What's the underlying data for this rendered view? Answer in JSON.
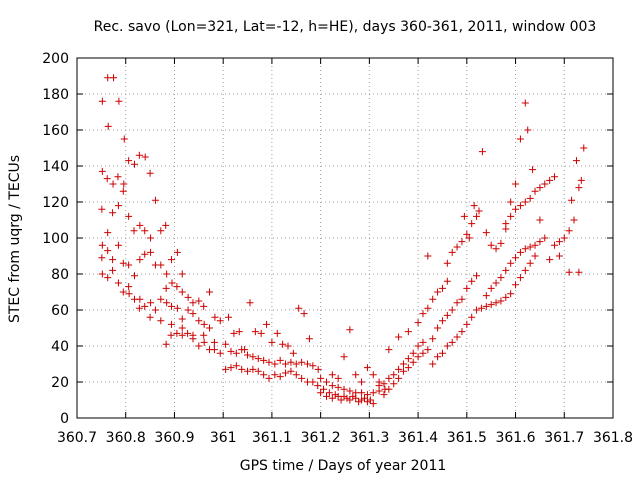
{
  "chart_data": {
    "type": "scatter",
    "title": "Rec. savo (Lon=321, Lat=-12, h=HE), days 360-361, 2011, window 003",
    "xlabel": "GPS time / Days of year 2011",
    "ylabel": "STEC from uqrg / TECUs",
    "xlim": [
      360.7,
      361.8
    ],
    "ylim": [
      0,
      200
    ],
    "xticks": [
      "360.7",
      "360.8",
      "360.9",
      "361",
      "361.1",
      "361.2",
      "361.3",
      "361.4",
      "361.5",
      "361.6",
      "361.7",
      "361.8"
    ],
    "yticks": [
      "0",
      "20",
      "40",
      "60",
      "80",
      "100",
      "120",
      "140",
      "160",
      "180",
      "200"
    ],
    "grid": true,
    "marker": "plus",
    "color": "#cc0000",
    "points": [
      [
        360.752,
        176
      ],
      [
        360.763,
        189
      ],
      [
        360.775,
        189
      ],
      [
        360.786,
        176
      ],
      [
        360.797,
        155
      ],
      [
        360.764,
        162
      ],
      [
        360.752,
        137
      ],
      [
        360.762,
        133
      ],
      [
        360.774,
        130
      ],
      [
        360.784,
        134
      ],
      [
        360.796,
        130
      ],
      [
        360.806,
        143
      ],
      [
        360.818,
        141
      ],
      [
        360.828,
        146
      ],
      [
        360.84,
        145
      ],
      [
        360.85,
        136
      ],
      [
        360.751,
        116
      ],
      [
        360.763,
        103
      ],
      [
        360.773,
        114
      ],
      [
        360.785,
        118
      ],
      [
        360.795,
        126
      ],
      [
        360.806,
        112
      ],
      [
        360.817,
        104
      ],
      [
        360.829,
        107
      ],
      [
        360.839,
        104
      ],
      [
        360.851,
        100
      ],
      [
        360.861,
        121
      ],
      [
        360.872,
        104
      ],
      [
        360.882,
        107
      ],
      [
        360.752,
        96
      ],
      [
        360.763,
        93
      ],
      [
        360.773,
        88
      ],
      [
        360.785,
        96
      ],
      [
        360.795,
        86
      ],
      [
        360.806,
        85
      ],
      [
        360.818,
        79
      ],
      [
        360.829,
        88
      ],
      [
        360.839,
        91
      ],
      [
        360.851,
        92
      ],
      [
        360.861,
        85
      ],
      [
        360.872,
        85
      ],
      [
        360.884,
        80
      ],
      [
        360.894,
        88
      ],
      [
        360.906,
        92
      ],
      [
        360.916,
        80
      ],
      [
        360.751,
        89
      ],
      [
        360.763,
        78
      ],
      [
        360.773,
        82
      ],
      [
        360.785,
        75
      ],
      [
        360.795,
        70
      ],
      [
        360.806,
        73
      ],
      [
        360.818,
        66
      ],
      [
        360.829,
        66
      ],
      [
        360.839,
        62
      ],
      [
        360.851,
        64
      ],
      [
        360.861,
        60
      ],
      [
        360.872,
        66
      ],
      [
        360.884,
        64
      ],
      [
        360.894,
        62
      ],
      [
        360.906,
        61
      ],
      [
        360.916,
        55
      ],
      [
        360.928,
        60
      ],
      [
        360.938,
        58
      ],
      [
        360.95,
        54
      ],
      [
        360.961,
        52
      ],
      [
        360.972,
        50
      ],
      [
        360.752,
        80
      ],
      [
        360.807,
        69
      ],
      [
        360.828,
        61
      ],
      [
        360.85,
        56
      ],
      [
        360.872,
        54
      ],
      [
        360.894,
        52
      ],
      [
        360.916,
        50
      ],
      [
        360.938,
        46
      ],
      [
        360.96,
        46
      ],
      [
        360.982,
        42
      ],
      [
        360.883,
        41
      ],
      [
        360.893,
        46
      ],
      [
        360.905,
        47
      ],
      [
        360.916,
        46
      ],
      [
        360.927,
        47
      ],
      [
        360.938,
        44
      ],
      [
        360.95,
        40
      ],
      [
        360.961,
        42
      ],
      [
        360.972,
        38
      ],
      [
        360.982,
        38
      ],
      [
        360.994,
        36
      ],
      [
        360.883,
        72
      ],
      [
        360.895,
        75
      ],
      [
        360.905,
        73
      ],
      [
        360.916,
        70
      ],
      [
        360.928,
        67
      ],
      [
        360.938,
        64
      ],
      [
        360.95,
        65
      ],
      [
        360.96,
        62
      ],
      [
        360.972,
        70
      ],
      [
        360.983,
        56
      ],
      [
        360.994,
        54
      ],
      [
        361.005,
        41
      ],
      [
        361.016,
        37
      ],
      [
        361.027,
        36
      ],
      [
        361.038,
        38
      ],
      [
        361.05,
        35
      ],
      [
        361.061,
        34
      ],
      [
        361.072,
        33
      ],
      [
        361.083,
        32
      ],
      [
        361.094,
        31
      ],
      [
        361.106,
        30
      ],
      [
        361.117,
        32
      ],
      [
        361.128,
        30
      ],
      [
        361.139,
        31
      ],
      [
        361.15,
        30
      ],
      [
        361.161,
        31
      ],
      [
        361.173,
        30
      ],
      [
        361.184,
        29
      ],
      [
        361.195,
        27
      ],
      [
        361.005,
        27
      ],
      [
        361.016,
        28
      ],
      [
        361.027,
        29
      ],
      [
        361.038,
        27
      ],
      [
        361.05,
        26
      ],
      [
        361.061,
        27
      ],
      [
        361.072,
        26
      ],
      [
        361.083,
        24
      ],
      [
        361.094,
        22
      ],
      [
        361.106,
        24
      ],
      [
        361.117,
        23
      ],
      [
        361.128,
        25
      ],
      [
        361.139,
        26
      ],
      [
        361.15,
        24
      ],
      [
        361.161,
        22
      ],
      [
        361.173,
        20
      ],
      [
        361.184,
        20
      ],
      [
        361.011,
        56
      ],
      [
        361.022,
        47
      ],
      [
        361.033,
        48
      ],
      [
        361.044,
        38
      ],
      [
        361.055,
        64
      ],
      [
        361.066,
        48
      ],
      [
        361.078,
        47
      ],
      [
        361.089,
        52
      ],
      [
        361.1,
        42
      ],
      [
        361.111,
        47
      ],
      [
        361.122,
        41
      ],
      [
        361.133,
        40
      ],
      [
        361.144,
        36
      ],
      [
        361.155,
        61
      ],
      [
        361.166,
        58
      ],
      [
        361.177,
        44
      ],
      [
        361.194,
        18
      ],
      [
        361.2,
        14
      ],
      [
        361.206,
        16
      ],
      [
        361.212,
        12
      ],
      [
        361.218,
        14
      ],
      [
        361.224,
        11
      ],
      [
        361.23,
        13
      ],
      [
        361.236,
        12
      ],
      [
        361.242,
        10
      ],
      [
        361.248,
        12
      ],
      [
        361.254,
        11
      ],
      [
        361.26,
        10
      ],
      [
        361.266,
        12
      ],
      [
        361.272,
        11
      ],
      [
        361.278,
        9
      ],
      [
        361.284,
        10
      ],
      [
        361.29,
        11
      ],
      [
        361.296,
        9
      ],
      [
        361.302,
        10
      ],
      [
        361.308,
        8
      ],
      [
        361.2,
        22
      ],
      [
        361.212,
        20
      ],
      [
        361.224,
        18
      ],
      [
        361.236,
        17
      ],
      [
        361.248,
        16
      ],
      [
        361.26,
        15
      ],
      [
        361.272,
        14
      ],
      [
        361.284,
        14
      ],
      [
        361.296,
        13
      ],
      [
        361.308,
        14
      ],
      [
        361.32,
        15
      ],
      [
        361.332,
        16
      ],
      [
        361.224,
        24
      ],
      [
        361.236,
        22
      ],
      [
        361.248,
        34
      ],
      [
        361.26,
        49
      ],
      [
        361.272,
        24
      ],
      [
        361.284,
        20
      ],
      [
        361.296,
        28
      ],
      [
        361.308,
        24
      ],
      [
        361.32,
        20
      ],
      [
        361.32,
        18
      ],
      [
        361.33,
        19
      ],
      [
        361.34,
        22
      ],
      [
        361.35,
        24
      ],
      [
        361.36,
        27
      ],
      [
        361.37,
        30
      ],
      [
        361.38,
        33
      ],
      [
        361.39,
        36
      ],
      [
        361.4,
        40
      ],
      [
        361.41,
        42
      ],
      [
        361.33,
        13
      ],
      [
        361.34,
        16
      ],
      [
        361.35,
        19
      ],
      [
        361.36,
        22
      ],
      [
        361.37,
        26
      ],
      [
        361.38,
        28
      ],
      [
        361.39,
        31
      ],
      [
        361.4,
        34
      ],
      [
        361.41,
        36
      ],
      [
        361.42,
        38
      ],
      [
        361.34,
        38
      ],
      [
        361.36,
        45
      ],
      [
        361.38,
        48
      ],
      [
        361.4,
        53
      ],
      [
        361.41,
        58
      ],
      [
        361.42,
        61
      ],
      [
        361.43,
        66
      ],
      [
        361.44,
        70
      ],
      [
        361.45,
        72
      ],
      [
        361.46,
        76
      ],
      [
        361.42,
        90
      ],
      [
        361.43,
        30
      ],
      [
        361.44,
        34
      ],
      [
        361.45,
        36
      ],
      [
        361.46,
        40
      ],
      [
        361.47,
        42
      ],
      [
        361.48,
        45
      ],
      [
        361.49,
        48
      ],
      [
        361.5,
        52
      ],
      [
        361.51,
        56
      ],
      [
        361.43,
        44
      ],
      [
        361.44,
        50
      ],
      [
        361.45,
        54
      ],
      [
        361.46,
        57
      ],
      [
        361.47,
        60
      ],
      [
        361.48,
        64
      ],
      [
        361.49,
        66
      ],
      [
        361.5,
        72
      ],
      [
        361.51,
        76
      ],
      [
        361.52,
        79
      ],
      [
        361.46,
        86
      ],
      [
        361.47,
        92
      ],
      [
        361.48,
        95
      ],
      [
        361.49,
        98
      ],
      [
        361.5,
        102
      ],
      [
        361.51,
        108
      ],
      [
        361.52,
        112
      ],
      [
        361.495,
        112
      ],
      [
        361.505,
        100
      ],
      [
        361.515,
        118
      ],
      [
        361.525,
        115
      ],
      [
        361.532,
        148
      ],
      [
        361.54,
        103
      ],
      [
        361.55,
        96
      ],
      [
        361.56,
        94
      ],
      [
        361.57,
        97
      ],
      [
        361.58,
        105
      ],
      [
        361.52,
        60
      ],
      [
        361.53,
        61
      ],
      [
        361.54,
        62
      ],
      [
        361.55,
        63
      ],
      [
        361.56,
        64
      ],
      [
        361.57,
        65
      ],
      [
        361.58,
        67
      ],
      [
        361.59,
        69
      ],
      [
        361.6,
        74
      ],
      [
        361.61,
        78
      ],
      [
        361.62,
        82
      ],
      [
        361.63,
        86
      ],
      [
        361.64,
        90
      ],
      [
        361.54,
        68
      ],
      [
        361.55,
        72
      ],
      [
        361.56,
        75
      ],
      [
        361.57,
        78
      ],
      [
        361.58,
        82
      ],
      [
        361.59,
        86
      ],
      [
        361.6,
        89
      ],
      [
        361.61,
        92
      ],
      [
        361.62,
        94
      ],
      [
        361.63,
        95
      ],
      [
        361.64,
        96
      ],
      [
        361.65,
        98
      ],
      [
        361.66,
        100
      ],
      [
        361.58,
        108
      ],
      [
        361.59,
        112
      ],
      [
        361.6,
        116
      ],
      [
        361.61,
        118
      ],
      [
        361.62,
        120
      ],
      [
        361.63,
        122
      ],
      [
        361.64,
        126
      ],
      [
        361.65,
        128
      ],
      [
        361.66,
        130
      ],
      [
        361.67,
        132
      ],
      [
        361.68,
        134
      ],
      [
        361.59,
        120
      ],
      [
        361.6,
        130
      ],
      [
        361.61,
        155
      ],
      [
        361.62,
        175
      ],
      [
        361.625,
        160
      ],
      [
        361.635,
        138
      ],
      [
        361.65,
        110
      ],
      [
        361.67,
        88
      ],
      [
        361.69,
        90
      ],
      [
        361.71,
        81
      ],
      [
        361.73,
        81
      ],
      [
        361.68,
        96
      ],
      [
        361.69,
        98
      ],
      [
        361.7,
        100
      ],
      [
        361.71,
        104
      ],
      [
        361.72,
        110
      ],
      [
        361.73,
        128
      ],
      [
        361.74,
        150
      ],
      [
        361.735,
        132
      ],
      [
        361.725,
        143
      ],
      [
        361.715,
        121
      ]
    ]
  }
}
